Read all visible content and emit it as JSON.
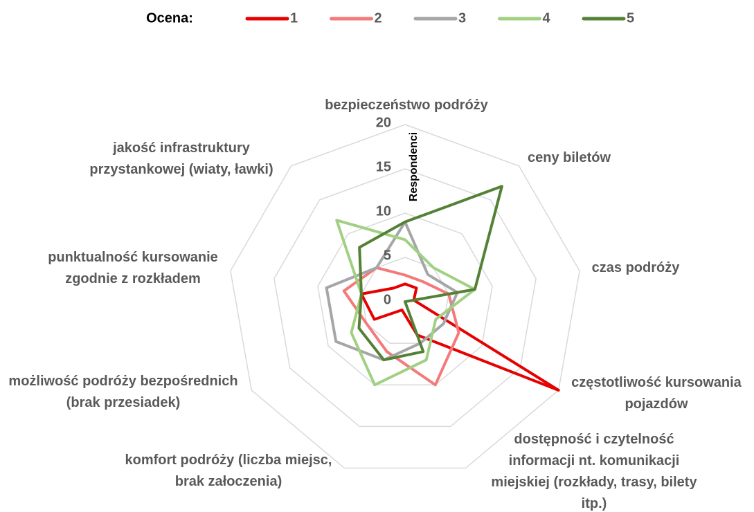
{
  "chart_data": {
    "type": "radar",
    "legend_title": "Ocena:",
    "axis_label": "Respondenci",
    "categories": [
      "bezpieczeństwo podróży",
      "ceny biletów",
      "czas podróży",
      "częstotliwość kursowania pojazdów",
      "dostępność i czytelność informacji nt. komunikacji miejskiej (rozkłady, trasy, bilety itp.)",
      "komfort podróży (liczba miejsc, brak załoczenia)",
      "możliwość podróży bezpośrednich (brak przesiadek)",
      "punktualność kursowanie zgodnie z rozkładem",
      "jakość infrastruktury przystankowej (wiaty, ławki)"
    ],
    "series": [
      {
        "name": "1",
        "color": "#e60000",
        "values": [
          2,
          2,
          1,
          20,
          4,
          1,
          4,
          5,
          2
        ]
      },
      {
        "name": "2",
        "color": "#f4797b",
        "values": [
          3,
          3,
          5,
          7,
          10,
          6,
          5,
          7,
          5
        ]
      },
      {
        "name": "3",
        "color": "#a6a6a6",
        "values": [
          9,
          4,
          6,
          5,
          5,
          7,
          9,
          9,
          5
        ]
      },
      {
        "name": "4",
        "color": "#a2d083",
        "values": [
          7,
          5,
          8,
          4,
          7,
          10,
          7,
          5,
          12
        ]
      },
      {
        "name": "5",
        "color": "#538135",
        "values": [
          9,
          17,
          8,
          0,
          6,
          7,
          6,
          5,
          8
        ]
      }
    ],
    "ylim": [
      0,
      20
    ],
    "yticks": [
      0,
      5,
      10,
      15,
      20
    ],
    "grid": true
  }
}
